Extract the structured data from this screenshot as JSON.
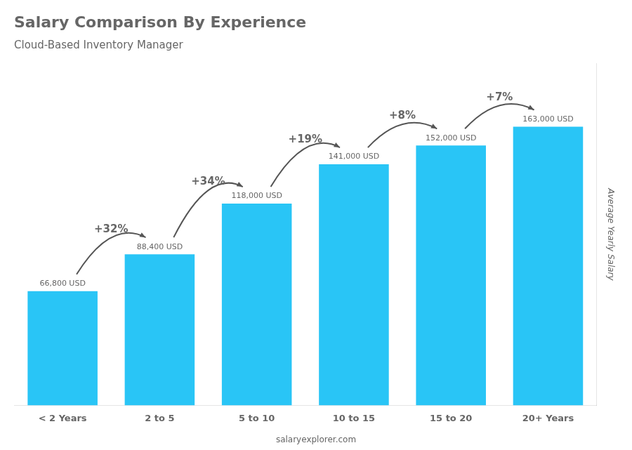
{
  "chart_data": {
    "type": "bar",
    "title": "Salary Comparison By Experience",
    "subtitle": "Cloud-Based Inventory Manager",
    "categories": [
      "< 2 Years",
      "2 to 5",
      "5 to 10",
      "10 to 15",
      "15 to 20",
      "20+ Years"
    ],
    "values": [
      66800,
      88400,
      118000,
      141000,
      152000,
      163000
    ],
    "value_labels": [
      "66,800 USD",
      "88,400 USD",
      "118,000 USD",
      "141,000 USD",
      "152,000 USD",
      "163,000 USD"
    ],
    "data_labels": true,
    "color": "#29c5f6",
    "ylabel": "Average Yearly Salary",
    "ylim": [
      0,
      200000
    ],
    "tick_labels": "x",
    "grid": false,
    "annotations": [
      "+32%",
      "+34%",
      "+19%",
      "+8%",
      "+7%"
    ],
    "footer": "salaryexplorer.com"
  }
}
